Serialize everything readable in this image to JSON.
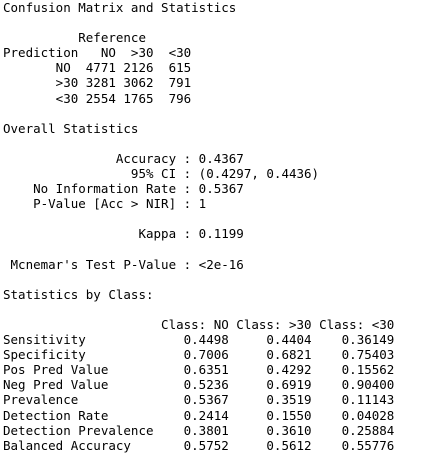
{
  "console": {
    "lines": [
      "Confusion Matrix and Statistics",
      "",
      "          Reference",
      "Prediction   NO  >30  <30",
      "       NO  4771 2126  615",
      "       >30 3281 3062  791",
      "       <30 2554 1765  796",
      "",
      "Overall Statistics",
      "",
      "               Accuracy : 0.4367",
      "                 95% CI : (0.4297, 0.4436)",
      "    No Information Rate : 0.5367",
      "    P-Value [Acc > NIR] : 1",
      "",
      "                  Kappa : 0.1199",
      "",
      " Mcnemar's Test P-Value : <2e-16",
      "",
      "Statistics by Class:",
      "",
      "                     Class: NO Class: >30 Class: <30",
      "Sensitivity             0.4498     0.4404    0.36149",
      "Specificity             0.7006     0.6821    0.75403",
      "Pos Pred Value          0.6351     0.4292    0.15562",
      "Neg Pred Value          0.5236     0.6919    0.90400",
      "Prevalence              0.5367     0.3519    0.11143",
      "Detection Rate          0.2414     0.1550    0.04028",
      "Detection Prevalence    0.3801     0.3610    0.25884",
      "Balanced Accuracy       0.5752     0.5612    0.55776"
    ]
  }
}
